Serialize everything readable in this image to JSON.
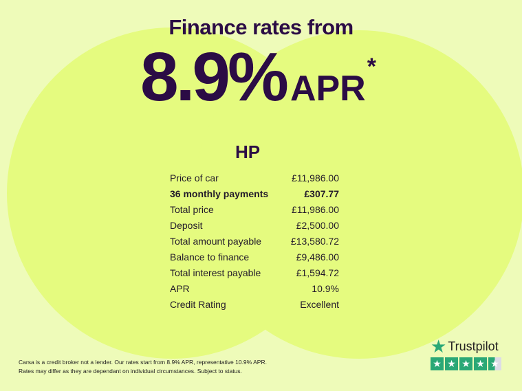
{
  "colors": {
    "background": "#eefbb9",
    "circle": "#e5fb7f",
    "text": "#2b0c45",
    "trustpilot_green": "#2aa876"
  },
  "headline": "Finance rates from",
  "rate": {
    "value": "8.9%",
    "suffix": "APR",
    "asterisk": "*"
  },
  "product": "HP",
  "rows": [
    {
      "label": "Price of car",
      "value": "£11,986.00",
      "bold": false
    },
    {
      "label": "36 monthly payments",
      "value": "£307.77",
      "bold": true
    },
    {
      "label": "Total price",
      "value": "£11,986.00",
      "bold": false
    },
    {
      "label": "Deposit",
      "value": "£2,500.00",
      "bold": false
    },
    {
      "label": "Total amount payable",
      "value": "£13,580.72",
      "bold": false
    },
    {
      "label": "Balance to finance",
      "value": "£9,486.00",
      "bold": false
    },
    {
      "label": "Total interest payable",
      "value": "£1,594.72",
      "bold": false
    },
    {
      "label": "APR",
      "value": "10.9%",
      "bold": false
    },
    {
      "label": "Credit Rating",
      "value": "Excellent",
      "bold": false
    }
  ],
  "disclaimer": {
    "line1": "Carsa is a credit broker not a lender. Our rates start from 8.9% APR, representative 10.9% APR.",
    "line2": "Rates may differ as they are dependant on individual circumstances. Subject to status."
  },
  "trustpilot": {
    "name": "Trustpilot",
    "icon": "star-icon",
    "rating_stars": 4.5
  }
}
